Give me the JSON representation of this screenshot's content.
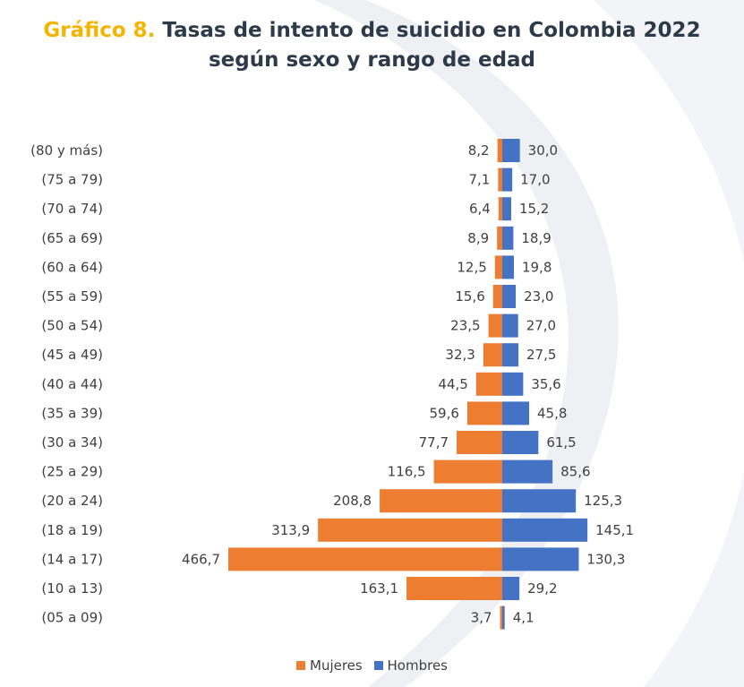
{
  "title": {
    "prefix": "Gráfico 8.",
    "line1": "Tasas de intento de suicidio en Colombia 2022",
    "line2": "según sexo y rango de edad"
  },
  "colors": {
    "mujeres": "#ed7d31",
    "hombres": "#4472c4",
    "title_prefix": "#f5b400",
    "title_text": "#2d3a4a",
    "background_decor": "#eef0f4"
  },
  "chart_data": {
    "type": "bar",
    "orientation": "horizontal",
    "layout": "population-pyramid",
    "categories": [
      "(80 y más)",
      "(75 a 79)",
      "(70 a 74)",
      "(65 a 69)",
      "(60 a 64)",
      "(55 a 59)",
      "(50 a 54)",
      "(45 a 49)",
      "(40 a 44)",
      "(35 a 39)",
      "(30 a 34)",
      "(25 a 29)",
      "(20 a 24)",
      "(18 a 19)",
      "(14 a 17)",
      "(10 a 13)",
      "(05 a 09)"
    ],
    "series": [
      {
        "name": "Mujeres",
        "side": "left",
        "values": [
          8.2,
          7.1,
          6.4,
          8.9,
          12.5,
          15.6,
          23.5,
          32.3,
          44.5,
          59.6,
          77.7,
          116.5,
          208.8,
          313.9,
          466.7,
          163.1,
          3.7
        ],
        "labels": [
          "8,2",
          "7,1",
          "6,4",
          "8,9",
          "12,5",
          "15,6",
          "23,5",
          "32,3",
          "44,5",
          "59,6",
          "77,7",
          "116,5",
          "208,8",
          "313,9",
          "466,7",
          "163,1",
          "3,7"
        ]
      },
      {
        "name": "Hombres",
        "side": "right",
        "values": [
          30.0,
          17.0,
          15.2,
          18.9,
          19.8,
          23.0,
          27.0,
          27.5,
          35.6,
          45.8,
          61.5,
          85.6,
          125.3,
          145.1,
          130.3,
          29.2,
          4.1
        ],
        "labels": [
          "30,0",
          "17,0",
          "15,2",
          "18,9",
          "19,8",
          "23,0",
          "27,0",
          "27,5",
          "35,6",
          "45,8",
          "61,5",
          "85,6",
          "125,3",
          "145,1",
          "130,3",
          "29,2",
          "4,1"
        ]
      }
    ],
    "legend": {
      "position": "bottom",
      "entries": [
        "Mujeres",
        "Hombres"
      ]
    },
    "grid": false
  }
}
